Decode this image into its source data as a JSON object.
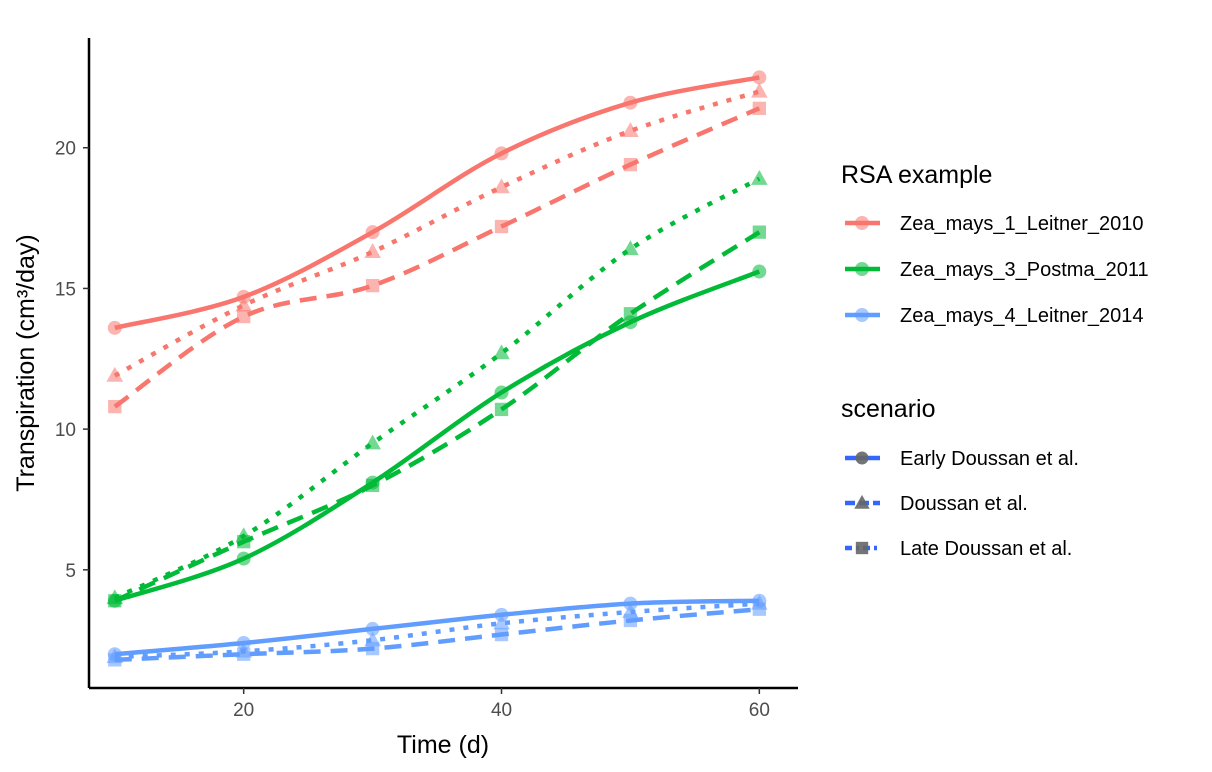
{
  "chart_data": {
    "type": "line",
    "title": "",
    "xlabel": "Time (d)",
    "ylabel": "Transpiration (cm³/day)",
    "xlim": [
      8,
      63
    ],
    "ylim": [
      0.8,
      23.9
    ],
    "x_ticks": [
      20,
      40,
      60
    ],
    "x_tick_labels": [
      "20",
      "40",
      "60"
    ],
    "y_ticks": [
      5,
      10,
      15,
      20
    ],
    "y_tick_labels": [
      "5",
      "10",
      "15",
      "20"
    ],
    "grid": false,
    "legend_position": "right",
    "x": [
      10,
      20,
      30,
      40,
      50,
      60
    ],
    "legend": {
      "color_title": "RSA example",
      "color_entries": [
        "Zea_mays_1_Leitner_2010",
        "Zea_mays_3_Postma_2011",
        "Zea_mays_4_Leitner_2014"
      ],
      "shape_title": "scenario",
      "shape_entries": [
        "Early Doussan et al.",
        "Doussan et al.",
        "Late Doussan et al."
      ]
    },
    "colors": {
      "Zea_mays_1_Leitner_2010": "#F8766D",
      "Zea_mays_3_Postma_2011": "#00BA38",
      "Zea_mays_4_Leitner_2014": "#619CFF",
      "legend_scenario": "#3366FF",
      "legend_scenario_point": "#666666"
    },
    "series": [
      {
        "rsa": "Zea_mays_1_Leitner_2010",
        "scenario": "Early Doussan et al.",
        "marker": "circle",
        "linestyle": "solid",
        "values": [
          13.6,
          14.7,
          17.0,
          19.8,
          21.6,
          22.5
        ]
      },
      {
        "rsa": "Zea_mays_1_Leitner_2010",
        "scenario": "Doussan et al.",
        "marker": "triangle",
        "linestyle": "dotted",
        "values": [
          11.9,
          14.4,
          16.3,
          18.6,
          20.6,
          22.0
        ]
      },
      {
        "rsa": "Zea_mays_1_Leitner_2010",
        "scenario": "Late Doussan et al.",
        "marker": "square",
        "linestyle": "dashed",
        "values": [
          10.8,
          14.0,
          15.1,
          17.2,
          19.4,
          21.4
        ]
      },
      {
        "rsa": "Zea_mays_3_Postma_2011",
        "scenario": "Early Doussan et al.",
        "marker": "circle",
        "linestyle": "solid",
        "values": [
          3.9,
          5.4,
          8.1,
          11.3,
          13.8,
          15.6
        ]
      },
      {
        "rsa": "Zea_mays_3_Postma_2011",
        "scenario": "Doussan et al.",
        "marker": "triangle",
        "linestyle": "dotted",
        "values": [
          4.0,
          6.2,
          9.5,
          12.7,
          16.4,
          18.9
        ]
      },
      {
        "rsa": "Zea_mays_3_Postma_2011",
        "scenario": "Late Doussan et al.",
        "marker": "square",
        "linestyle": "dashed",
        "values": [
          3.9,
          6.0,
          8.0,
          10.7,
          14.1,
          17.0
        ]
      },
      {
        "rsa": "Zea_mays_4_Leitner_2014",
        "scenario": "Early Doussan et al.",
        "marker": "circle",
        "linestyle": "solid",
        "values": [
          2.0,
          2.4,
          2.9,
          3.4,
          3.8,
          3.9
        ]
      },
      {
        "rsa": "Zea_mays_4_Leitner_2014",
        "scenario": "Doussan et al.",
        "marker": "triangle",
        "linestyle": "dotted",
        "values": [
          1.9,
          2.1,
          2.5,
          3.1,
          3.5,
          3.8
        ]
      },
      {
        "rsa": "Zea_mays_4_Leitner_2014",
        "scenario": "Late Doussan et al.",
        "marker": "square",
        "linestyle": "dashed",
        "values": [
          1.8,
          2.0,
          2.2,
          2.7,
          3.2,
          3.6
        ]
      }
    ]
  }
}
